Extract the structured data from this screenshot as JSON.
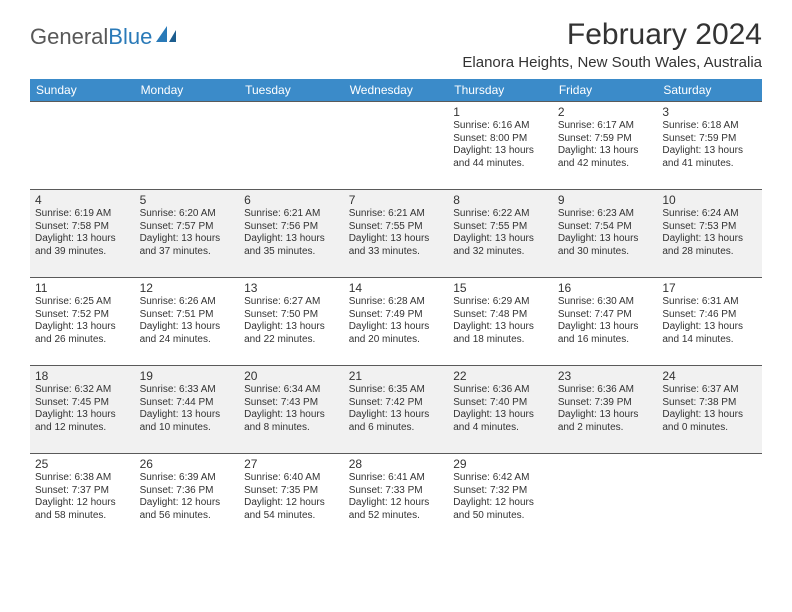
{
  "brand": {
    "name_part1": "General",
    "name_part2": "Blue",
    "text_color": "#585858",
    "accent_color": "#2a7ab8"
  },
  "title": "February 2024",
  "location": "Elanora Heights, New South Wales, Australia",
  "colors": {
    "header_bg": "#3b8bc9",
    "header_fg": "#ffffff",
    "row_odd_bg": "#ffffff",
    "row_even_bg": "#f1f1f1",
    "cell_border": "#5a5a5a",
    "text": "#333333"
  },
  "typography": {
    "title_fontsize": 30,
    "location_fontsize": 15,
    "dow_fontsize": 12,
    "daynum_fontsize": 12,
    "body_fontsize": 10
  },
  "days_of_week": [
    "Sunday",
    "Monday",
    "Tuesday",
    "Wednesday",
    "Thursday",
    "Friday",
    "Saturday"
  ],
  "weeks": [
    [
      null,
      null,
      null,
      null,
      {
        "n": "1",
        "sunrise": "Sunrise: 6:16 AM",
        "sunset": "Sunset: 8:00 PM",
        "dl1": "Daylight: 13 hours",
        "dl2": "and 44 minutes."
      },
      {
        "n": "2",
        "sunrise": "Sunrise: 6:17 AM",
        "sunset": "Sunset: 7:59 PM",
        "dl1": "Daylight: 13 hours",
        "dl2": "and 42 minutes."
      },
      {
        "n": "3",
        "sunrise": "Sunrise: 6:18 AM",
        "sunset": "Sunset: 7:59 PM",
        "dl1": "Daylight: 13 hours",
        "dl2": "and 41 minutes."
      }
    ],
    [
      {
        "n": "4",
        "sunrise": "Sunrise: 6:19 AM",
        "sunset": "Sunset: 7:58 PM",
        "dl1": "Daylight: 13 hours",
        "dl2": "and 39 minutes."
      },
      {
        "n": "5",
        "sunrise": "Sunrise: 6:20 AM",
        "sunset": "Sunset: 7:57 PM",
        "dl1": "Daylight: 13 hours",
        "dl2": "and 37 minutes."
      },
      {
        "n": "6",
        "sunrise": "Sunrise: 6:21 AM",
        "sunset": "Sunset: 7:56 PM",
        "dl1": "Daylight: 13 hours",
        "dl2": "and 35 minutes."
      },
      {
        "n": "7",
        "sunrise": "Sunrise: 6:21 AM",
        "sunset": "Sunset: 7:55 PM",
        "dl1": "Daylight: 13 hours",
        "dl2": "and 33 minutes."
      },
      {
        "n": "8",
        "sunrise": "Sunrise: 6:22 AM",
        "sunset": "Sunset: 7:55 PM",
        "dl1": "Daylight: 13 hours",
        "dl2": "and 32 minutes."
      },
      {
        "n": "9",
        "sunrise": "Sunrise: 6:23 AM",
        "sunset": "Sunset: 7:54 PM",
        "dl1": "Daylight: 13 hours",
        "dl2": "and 30 minutes."
      },
      {
        "n": "10",
        "sunrise": "Sunrise: 6:24 AM",
        "sunset": "Sunset: 7:53 PM",
        "dl1": "Daylight: 13 hours",
        "dl2": "and 28 minutes."
      }
    ],
    [
      {
        "n": "11",
        "sunrise": "Sunrise: 6:25 AM",
        "sunset": "Sunset: 7:52 PM",
        "dl1": "Daylight: 13 hours",
        "dl2": "and 26 minutes."
      },
      {
        "n": "12",
        "sunrise": "Sunrise: 6:26 AM",
        "sunset": "Sunset: 7:51 PM",
        "dl1": "Daylight: 13 hours",
        "dl2": "and 24 minutes."
      },
      {
        "n": "13",
        "sunrise": "Sunrise: 6:27 AM",
        "sunset": "Sunset: 7:50 PM",
        "dl1": "Daylight: 13 hours",
        "dl2": "and 22 minutes."
      },
      {
        "n": "14",
        "sunrise": "Sunrise: 6:28 AM",
        "sunset": "Sunset: 7:49 PM",
        "dl1": "Daylight: 13 hours",
        "dl2": "and 20 minutes."
      },
      {
        "n": "15",
        "sunrise": "Sunrise: 6:29 AM",
        "sunset": "Sunset: 7:48 PM",
        "dl1": "Daylight: 13 hours",
        "dl2": "and 18 minutes."
      },
      {
        "n": "16",
        "sunrise": "Sunrise: 6:30 AM",
        "sunset": "Sunset: 7:47 PM",
        "dl1": "Daylight: 13 hours",
        "dl2": "and 16 minutes."
      },
      {
        "n": "17",
        "sunrise": "Sunrise: 6:31 AM",
        "sunset": "Sunset: 7:46 PM",
        "dl1": "Daylight: 13 hours",
        "dl2": "and 14 minutes."
      }
    ],
    [
      {
        "n": "18",
        "sunrise": "Sunrise: 6:32 AM",
        "sunset": "Sunset: 7:45 PM",
        "dl1": "Daylight: 13 hours",
        "dl2": "and 12 minutes."
      },
      {
        "n": "19",
        "sunrise": "Sunrise: 6:33 AM",
        "sunset": "Sunset: 7:44 PM",
        "dl1": "Daylight: 13 hours",
        "dl2": "and 10 minutes."
      },
      {
        "n": "20",
        "sunrise": "Sunrise: 6:34 AM",
        "sunset": "Sunset: 7:43 PM",
        "dl1": "Daylight: 13 hours",
        "dl2": "and 8 minutes."
      },
      {
        "n": "21",
        "sunrise": "Sunrise: 6:35 AM",
        "sunset": "Sunset: 7:42 PM",
        "dl1": "Daylight: 13 hours",
        "dl2": "and 6 minutes."
      },
      {
        "n": "22",
        "sunrise": "Sunrise: 6:36 AM",
        "sunset": "Sunset: 7:40 PM",
        "dl1": "Daylight: 13 hours",
        "dl2": "and 4 minutes."
      },
      {
        "n": "23",
        "sunrise": "Sunrise: 6:36 AM",
        "sunset": "Sunset: 7:39 PM",
        "dl1": "Daylight: 13 hours",
        "dl2": "and 2 minutes."
      },
      {
        "n": "24",
        "sunrise": "Sunrise: 6:37 AM",
        "sunset": "Sunset: 7:38 PM",
        "dl1": "Daylight: 13 hours",
        "dl2": "and 0 minutes."
      }
    ],
    [
      {
        "n": "25",
        "sunrise": "Sunrise: 6:38 AM",
        "sunset": "Sunset: 7:37 PM",
        "dl1": "Daylight: 12 hours",
        "dl2": "and 58 minutes."
      },
      {
        "n": "26",
        "sunrise": "Sunrise: 6:39 AM",
        "sunset": "Sunset: 7:36 PM",
        "dl1": "Daylight: 12 hours",
        "dl2": "and 56 minutes."
      },
      {
        "n": "27",
        "sunrise": "Sunrise: 6:40 AM",
        "sunset": "Sunset: 7:35 PM",
        "dl1": "Daylight: 12 hours",
        "dl2": "and 54 minutes."
      },
      {
        "n": "28",
        "sunrise": "Sunrise: 6:41 AM",
        "sunset": "Sunset: 7:33 PM",
        "dl1": "Daylight: 12 hours",
        "dl2": "and 52 minutes."
      },
      {
        "n": "29",
        "sunrise": "Sunrise: 6:42 AM",
        "sunset": "Sunset: 7:32 PM",
        "dl1": "Daylight: 12 hours",
        "dl2": "and 50 minutes."
      },
      null,
      null
    ]
  ]
}
